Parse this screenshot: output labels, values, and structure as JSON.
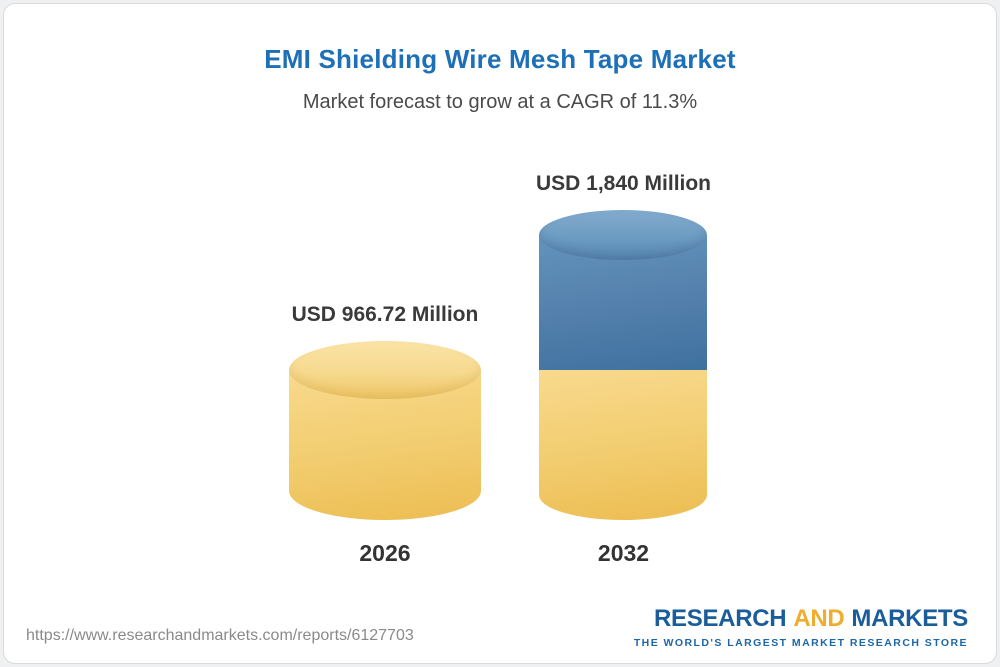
{
  "header": {
    "title": "EMI Shielding Wire Mesh Tape Market",
    "subtitle": "Market forecast to grow at a CAGR of 11.3%"
  },
  "chart_data": {
    "type": "bar",
    "title": "EMI Shielding Wire Mesh Tape Market",
    "subtitle": "Market forecast to grow at a CAGR of 11.3%",
    "categories": [
      "2026",
      "2032"
    ],
    "values": [
      966.72,
      1840
    ],
    "value_labels": [
      "USD 966.72 Million",
      "USD 1,840 Million"
    ],
    "unit": "USD Million",
    "cagr": "11.3%",
    "ylim": [
      0,
      1840
    ],
    "legend_position": "none",
    "grid": false,
    "notes": "3D cylinder bars; 2032 bar is stacked: yellow base equal to 2026 value with blue growth segment on top",
    "colors": {
      "base_segment": "#f3cf74",
      "growth_segment": "#527fab",
      "title": "#1d70b8"
    }
  },
  "footer": {
    "url": "https://www.researchandmarkets.com/reports/6127703",
    "logo": {
      "part1": "RESEARCH",
      "part2": "AND",
      "part3": "MARKETS",
      "tagline": "THE WORLD'S LARGEST MARKET RESEARCH STORE"
    }
  }
}
